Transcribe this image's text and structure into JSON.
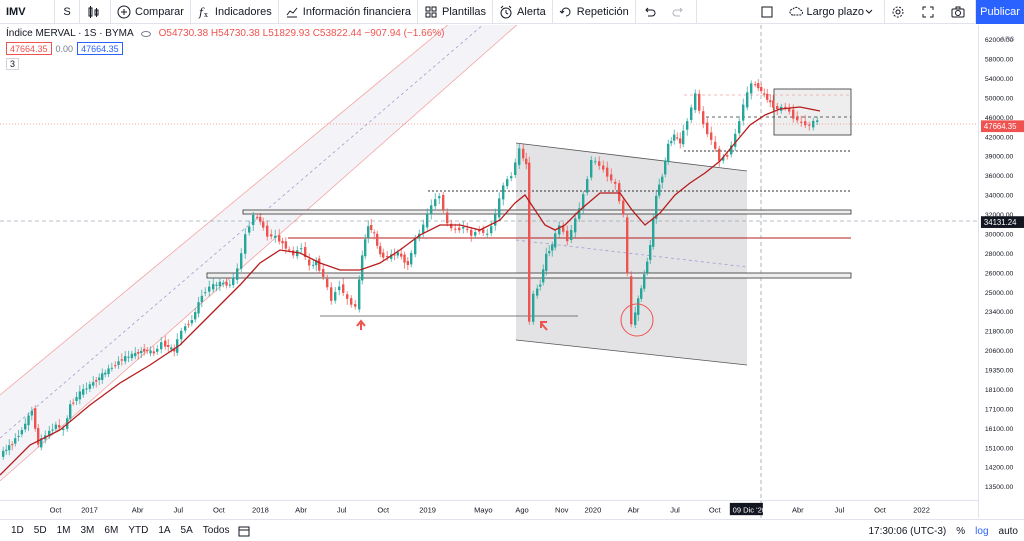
{
  "toolbar": {
    "symbol": "IMV",
    "interval": "S",
    "compare": "Comparar",
    "indicators": "Indicadores",
    "financial": "Información financiera",
    "templates": "Plantillas",
    "alert": "Alerta",
    "replay": "Repetición",
    "layout": "Largo plazo",
    "publish": "Publicar"
  },
  "legend": {
    "title": "Índice MERVAL · 1S · BYMA",
    "open": "O54730.38",
    "high": "H54730.38",
    "low": "L51829.93",
    "close": "C53822.44",
    "change": "−907.94 (−1.66%)",
    "price_sell": "47664.35",
    "spread": "0.00",
    "price_buy": "47664.35",
    "studies_count": "3"
  },
  "axis": {
    "currency": "ARS",
    "labels": [
      "62000.00",
      "58000.00",
      "54000.00",
      "50000.00",
      "46000.00",
      "42000.00",
      "39000.00",
      "36000.00",
      "34000.00",
      "32000.00",
      "30000.00",
      "28000.00",
      "26000.00",
      "25000.00",
      "23400.00",
      "21800.00",
      "20600.00",
      "19350.00",
      "18100.00",
      "17100.00",
      "16100.00",
      "15100.00",
      "14200.00",
      "13500.00"
    ],
    "last_price": "47664.35",
    "crosshair_price": "34131.24"
  },
  "xaxis": {
    "labels": [
      "Oct",
      "2017",
      "Abr",
      "Jul",
      "Oct",
      "2018",
      "Abr",
      "Jul",
      "Oct",
      "2019",
      "Mayo",
      "Ago",
      "Nov",
      "2020",
      "Abr",
      "Jul",
      "Oct",
      "Abr",
      "Jul",
      "Oct",
      "2022"
    ],
    "crosshair_date": "09 Dic '20"
  },
  "bottombar": {
    "ranges": [
      "1D",
      "5D",
      "1M",
      "3M",
      "6M",
      "YTD",
      "1A",
      "5A",
      "Todos"
    ],
    "time": "17:30:06 (UTC-3)",
    "pct": "%",
    "log": "log",
    "auto": "auto"
  },
  "colors": {
    "up": "#26a69a",
    "down": "#ef5350",
    "accent": "#2962ff",
    "ma": "#b71c1c"
  }
}
